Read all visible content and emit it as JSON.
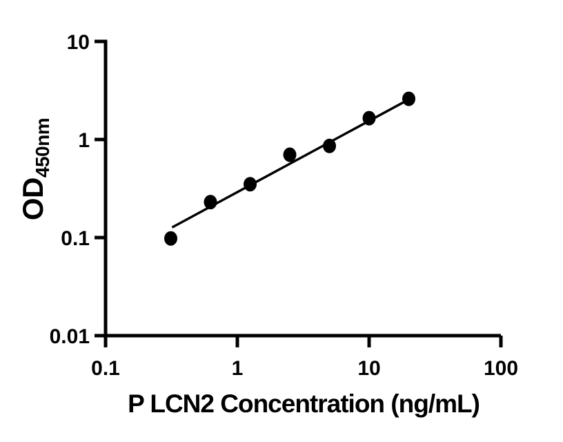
{
  "figure": {
    "background": "#ffffff"
  },
  "chart_data": {
    "type": "scatter",
    "title": "",
    "xlabel": "P LCN2 Concentration (ng/mL)",
    "ylabel": "OD",
    "ylabel_subscript": "450nm",
    "x_scale": "log",
    "y_scale": "log",
    "xlim": [
      0.1,
      100
    ],
    "ylim": [
      0.01,
      10
    ],
    "x_tick_values": [
      0.1,
      1,
      10,
      100
    ],
    "x_tick_labels": [
      "0.1",
      "1",
      "10",
      "100"
    ],
    "y_tick_values": [
      0.01,
      0.1,
      1,
      10
    ],
    "y_tick_labels": [
      "0.01",
      "0.1",
      "1",
      "10"
    ],
    "grid": false,
    "points": [
      {
        "x": 0.3125,
        "y": 0.098
      },
      {
        "x": 0.625,
        "y": 0.23
      },
      {
        "x": 1.25,
        "y": 0.35
      },
      {
        "x": 2.5,
        "y": 0.7
      },
      {
        "x": 5,
        "y": 0.86
      },
      {
        "x": 10,
        "y": 1.65
      },
      {
        "x": 20,
        "y": 2.6
      }
    ],
    "trend_line": {
      "x1": 0.32,
      "y1": 0.127,
      "x2": 20.4,
      "y2": 2.6
    },
    "colors": {
      "marker": "#000000",
      "line": "#000000",
      "axis": "#000000",
      "text": "#000000",
      "background": "#ffffff"
    }
  }
}
